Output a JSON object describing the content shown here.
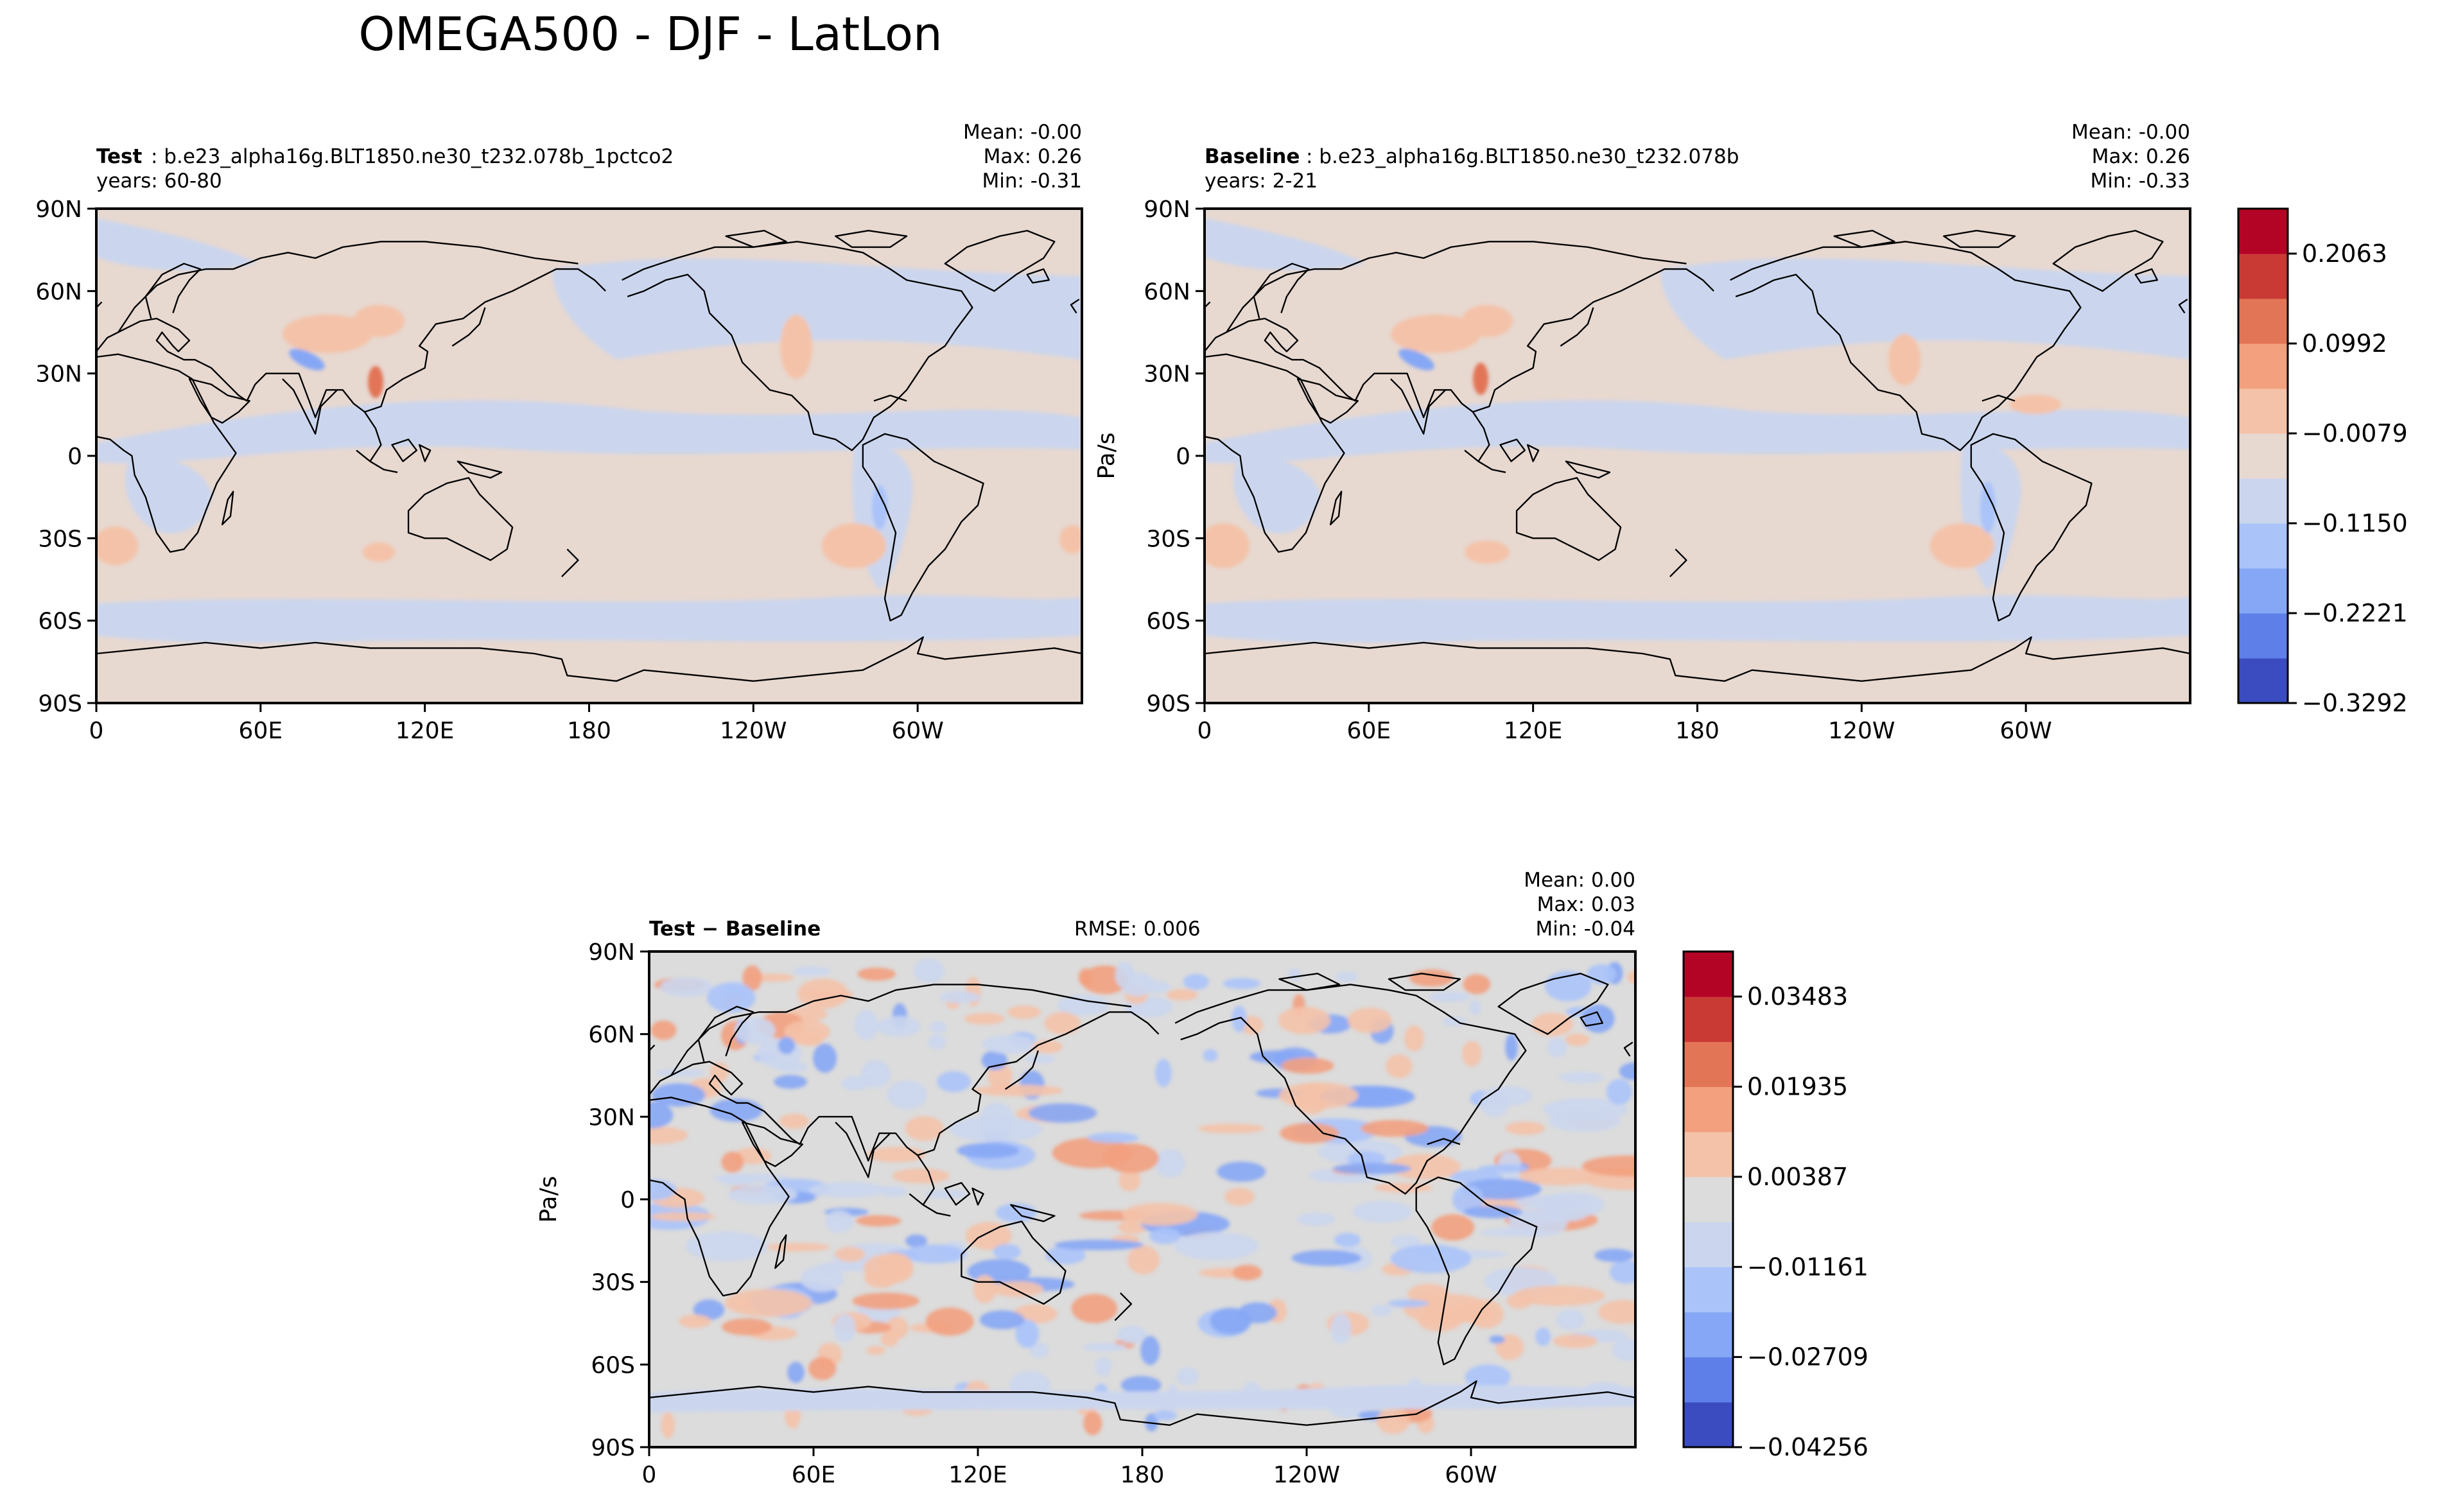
{
  "figure": {
    "title": "OMEGA500 - DJF - LatLon"
  },
  "colors": {
    "levels": [
      "#3b4cc0",
      "#5f7fe8",
      "#86a7f5",
      "#aac3f9",
      "#cbd6ee",
      "#e7d8d0",
      "#f4c2a8",
      "#f2a07e",
      "#e27556",
      "#c93a35"
    ],
    "diff_neutral": "#dcdcdc",
    "land_outline": "#000000"
  },
  "panels": [
    {
      "id": "test",
      "title_bold": "Test",
      "title_rest": ": b.e23_alpha16g.BLT1850.ne30_t232.078b_1pctco2",
      "years": "years: 60-80",
      "stats": [
        "Mean: -0.00",
        "Max:  0.26",
        "Min: -0.31"
      ],
      "ylabel": "",
      "xticks": [
        "0",
        "60E",
        "120E",
        "180",
        "120W",
        "60W"
      ],
      "yticks": [
        "90N",
        "60N",
        "30N",
        "0",
        "30S",
        "60S",
        "90S"
      ]
    },
    {
      "id": "baseline",
      "title_bold": "Baseline",
      "title_rest": ": b.e23_alpha16g.BLT1850.ne30_t232.078b",
      "years": "years: 2-21",
      "stats": [
        "Mean: -0.00",
        "Max:  0.26",
        "Min: -0.33"
      ],
      "ylabel": "Pa/s",
      "xticks": [
        "0",
        "60E",
        "120E",
        "180",
        "120W",
        "60W"
      ],
      "yticks": [
        "90N",
        "60N",
        "30N",
        "0",
        "30S",
        "60S",
        "90S"
      ]
    },
    {
      "id": "diff",
      "title_bold": "Test − Baseline",
      "rmse": "RMSE: 0.006",
      "stats": [
        "Mean:  0.00",
        "Max:  0.03",
        "Min: -0.04"
      ],
      "ylabel": "Pa/s",
      "xticks": [
        "0",
        "60E",
        "120E",
        "180",
        "120W",
        "60W"
      ],
      "yticks": [
        "90N",
        "60N",
        "30N",
        "0",
        "30S",
        "60S",
        "90S"
      ]
    }
  ],
  "colorbars": {
    "main": {
      "ticks": [
        "0.2063",
        "0.0992",
        "−0.0079",
        "−0.1150",
        "−0.2221",
        "−0.3292"
      ]
    },
    "diff": {
      "ticks": [
        "0.03483",
        "0.01935",
        "0.00387",
        "−0.01161",
        "−0.02709",
        "−0.04256"
      ]
    }
  },
  "chart_data": [
    {
      "type": "heatmap",
      "title": "Test: b.e23_alpha16g.BLT1850.ne30_t232.078b_1pctco2",
      "x_axis": "longitude",
      "xlim": [
        0,
        360
      ],
      "y_axis": "latitude",
      "ylim": [
        -90,
        90
      ],
      "mean": -0.0,
      "max": 0.26,
      "min": -0.31,
      "level_boundaries": [
        -0.3292,
        -0.2757,
        -0.2221,
        -0.1686,
        -0.115,
        -0.0614,
        -0.0079,
        0.0457,
        0.0992,
        0.1528,
        0.2063,
        0.2599
      ]
    },
    {
      "type": "heatmap",
      "title": "Baseline: b.e23_alpha16g.BLT1850.ne30_t232.078b",
      "x_axis": "longitude",
      "xlim": [
        0,
        360
      ],
      "y_axis": "latitude",
      "ylim": [
        -90,
        90
      ],
      "mean": -0.0,
      "max": 0.26,
      "min": -0.33,
      "level_boundaries": [
        -0.3292,
        -0.2757,
        -0.2221,
        -0.1686,
        -0.115,
        -0.0614,
        -0.0079,
        0.0457,
        0.0992,
        0.1528,
        0.2063,
        0.2599
      ]
    },
    {
      "type": "heatmap",
      "title": "Test − Baseline",
      "x_axis": "longitude",
      "xlim": [
        0,
        360
      ],
      "y_axis": "latitude",
      "ylim": [
        -90,
        90
      ],
      "mean": 0.0,
      "max": 0.03,
      "min": -0.04,
      "rmse": 0.006,
      "level_boundaries": [
        -0.04256,
        -0.03483,
        -0.02709,
        -0.01935,
        -0.01161,
        -0.00387,
        0.00387,
        0.01161,
        0.01935,
        0.02709,
        0.03483,
        0.04256
      ]
    }
  ]
}
